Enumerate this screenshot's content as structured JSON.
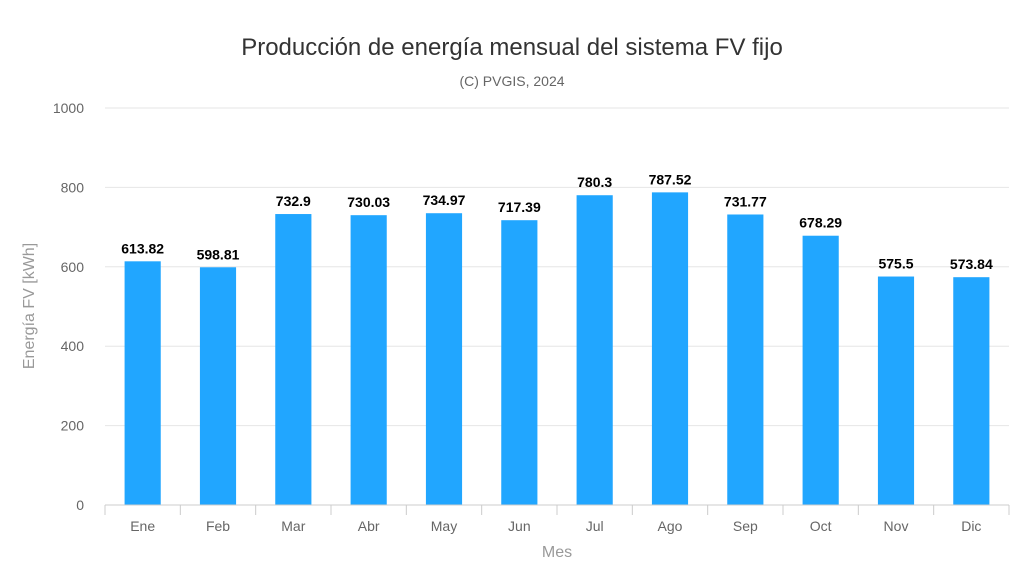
{
  "chart_data": {
    "type": "bar",
    "title": "Producción de energía mensual del sistema FV fijo",
    "subtitle": "(C) PVGIS, 2024",
    "xlabel": "Mes",
    "ylabel": "Energía FV [kWh]",
    "categories": [
      "Ene",
      "Feb",
      "Mar",
      "Abr",
      "May",
      "Jun",
      "Jul",
      "Ago",
      "Sep",
      "Oct",
      "Nov",
      "Dic"
    ],
    "values": [
      613.82,
      598.81,
      732.9,
      730.03,
      734.97,
      717.39,
      780.3,
      787.52,
      731.77,
      678.29,
      575.5,
      573.84
    ],
    "ylim": [
      0,
      1000
    ],
    "yticks": [
      0,
      200,
      400,
      600,
      800,
      1000
    ],
    "grid": true,
    "legend": "none",
    "colors": {
      "bar": "#21a6ff",
      "grid": "#e6e6e6",
      "axis": "#cccccc"
    }
  }
}
